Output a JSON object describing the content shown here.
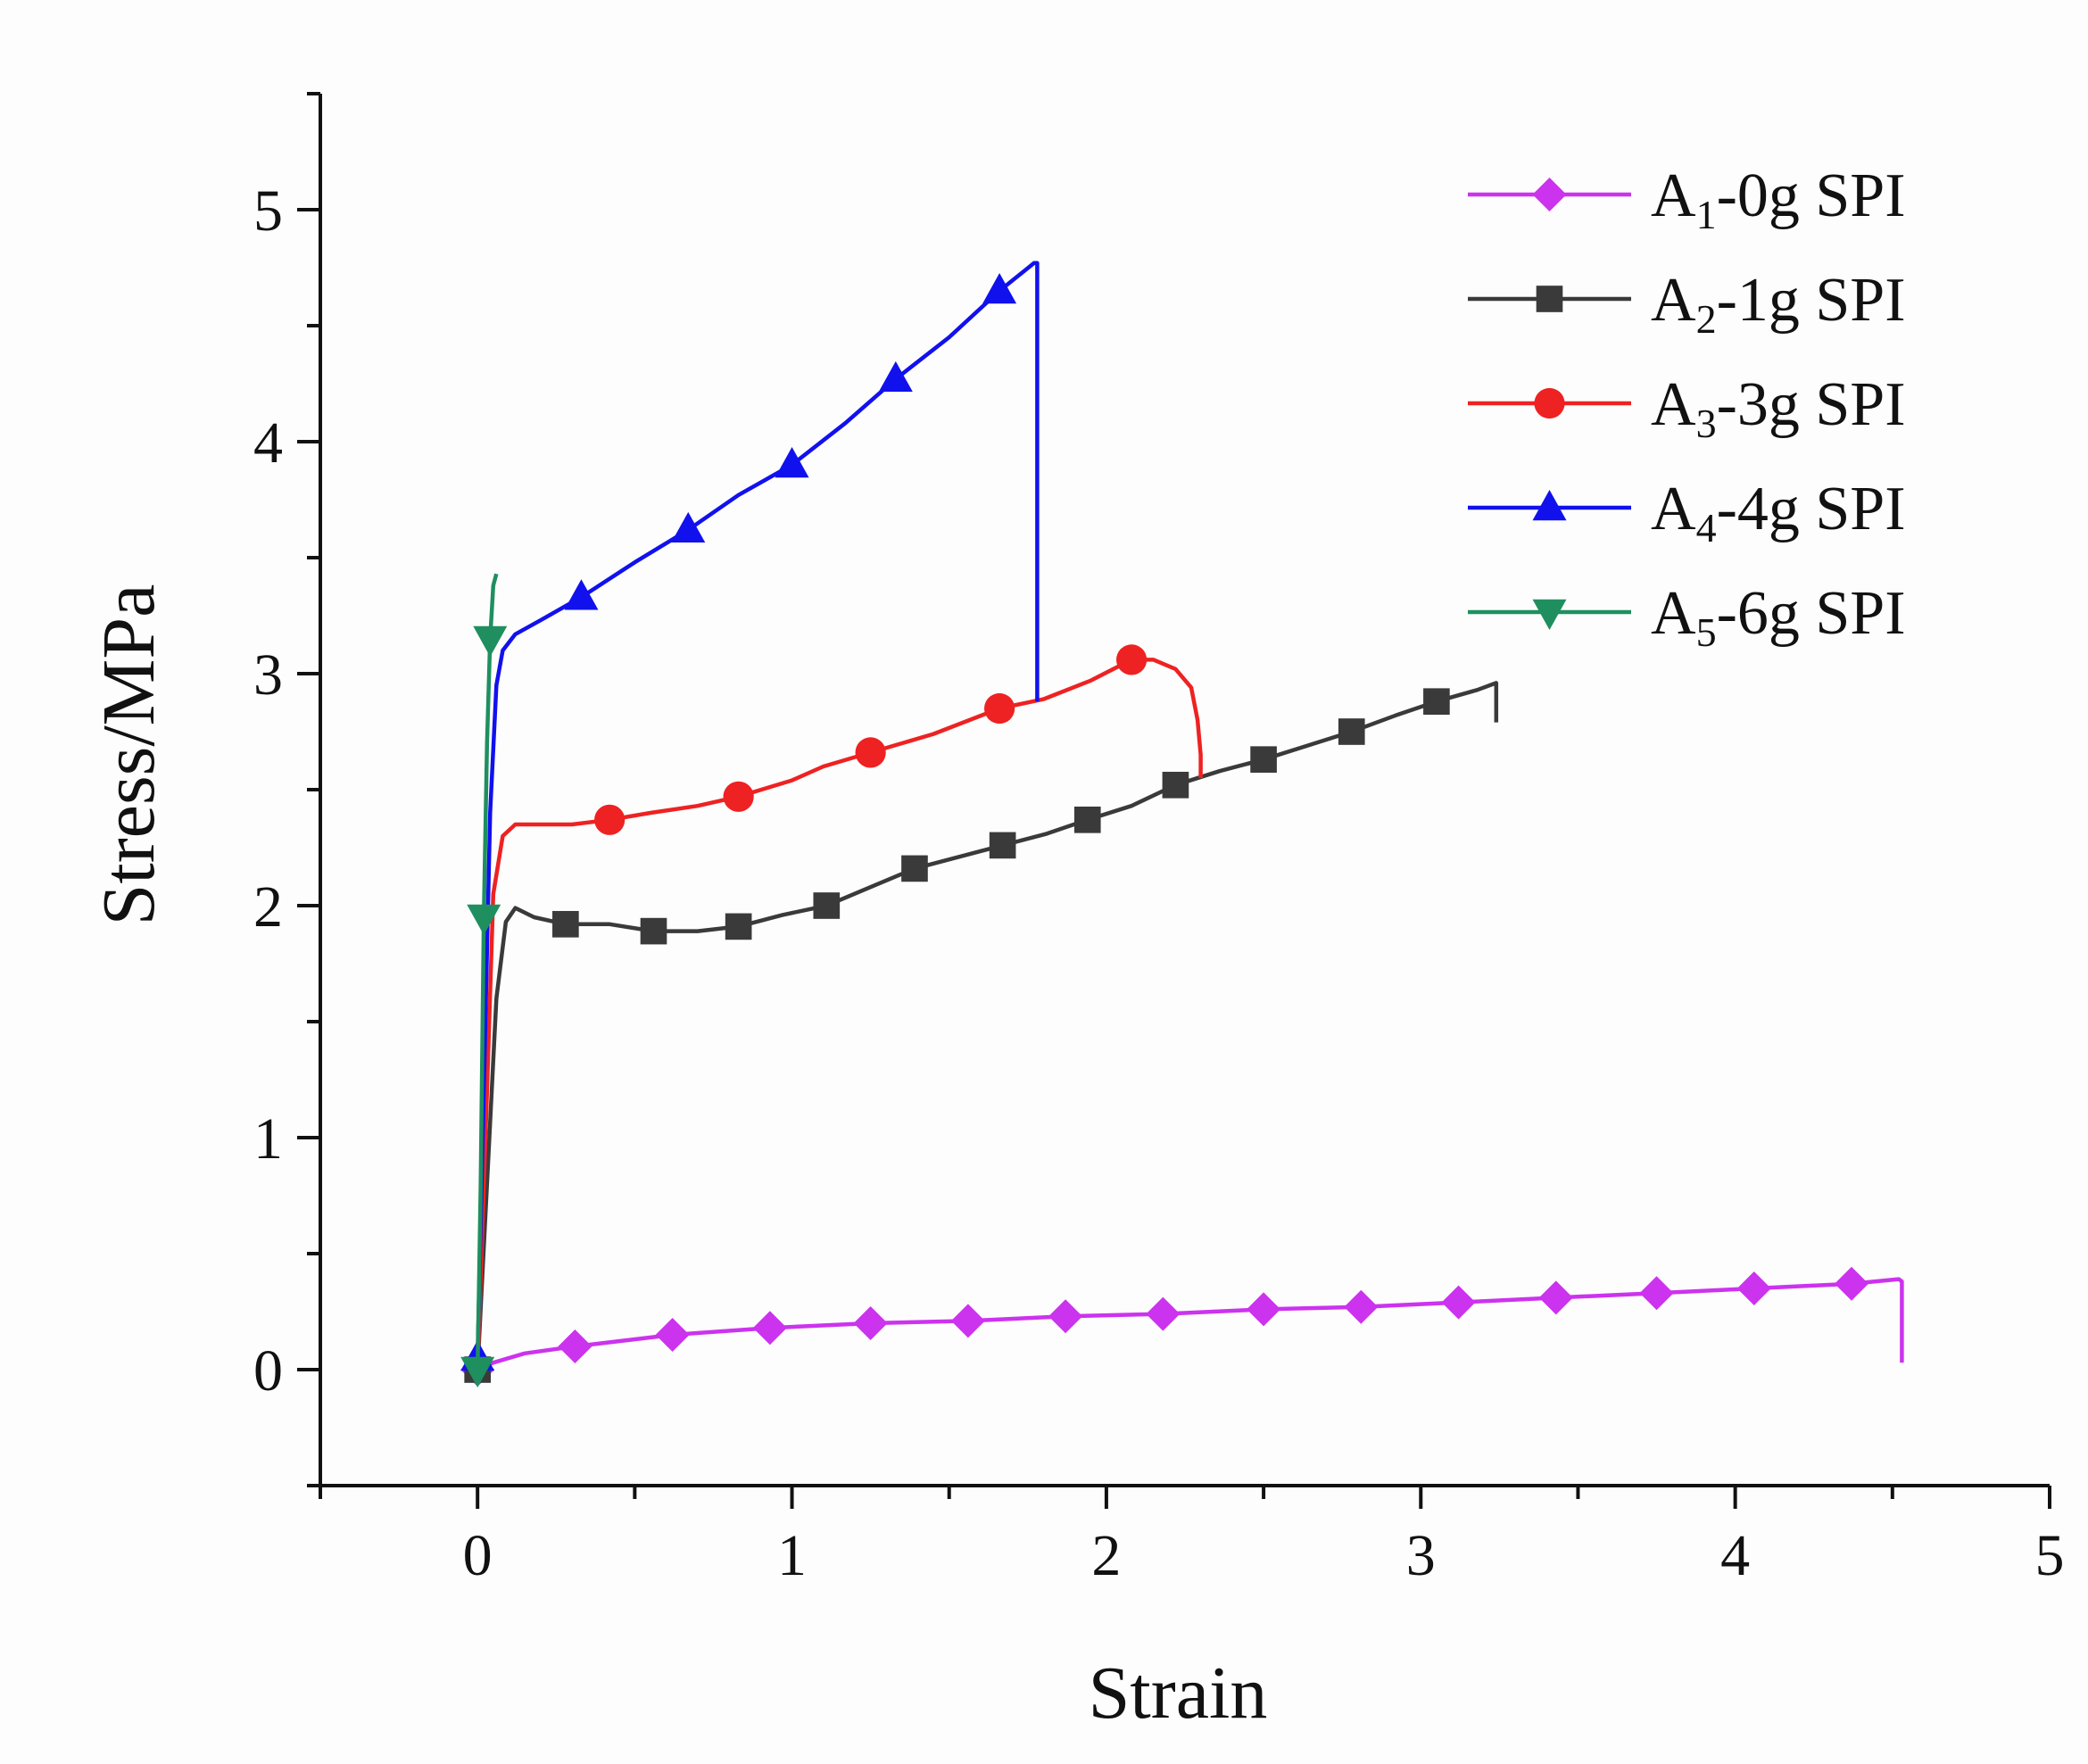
{
  "chart_data": {
    "type": "line",
    "title": "",
    "xlabel": "Strain",
    "ylabel": "Stress/MPa",
    "xlim": [
      -0.5,
      5
    ],
    "ylim": [
      -0.5,
      5.5
    ],
    "xticks": [
      "0",
      "1",
      "2",
      "3",
      "4",
      "5"
    ],
    "yticks": [
      "0",
      "1",
      "2",
      "3",
      "4",
      "5"
    ],
    "legend_position": "top-right",
    "series": [
      {
        "name": "A1-0g SPI",
        "label_main": "A",
        "label_sub": "1",
        "label_rest": "-0g SPI",
        "color": "#cc33ee",
        "marker": "diamond",
        "x": [
          0,
          0.05,
          0.15,
          0.31,
          0.62,
          0.93,
          1.25,
          1.56,
          1.87,
          2.18,
          2.5,
          2.81,
          3.12,
          3.43,
          3.75,
          4.06,
          4.37,
          4.52,
          4.53,
          4.53
        ],
        "y": [
          0,
          0.03,
          0.07,
          0.1,
          0.15,
          0.18,
          0.2,
          0.21,
          0.23,
          0.24,
          0.26,
          0.27,
          0.29,
          0.31,
          0.33,
          0.35,
          0.37,
          0.39,
          0.38,
          0.03
        ],
        "markers_x": [
          0,
          0.31,
          0.62,
          0.93,
          1.25,
          1.56,
          1.87,
          2.18,
          2.5,
          2.81,
          3.12,
          3.43,
          3.75,
          4.06,
          4.37
        ],
        "markers_y": [
          0,
          0.1,
          0.15,
          0.18,
          0.2,
          0.21,
          0.23,
          0.24,
          0.26,
          0.27,
          0.29,
          0.31,
          0.33,
          0.35,
          0.37
        ]
      },
      {
        "name": "A2-1g SPI",
        "label_main": "A",
        "label_sub": "2",
        "label_rest": "-1g SPI",
        "color": "#3a3a3a",
        "marker": "square",
        "x": [
          0,
          0.03,
          0.06,
          0.09,
          0.12,
          0.18,
          0.28,
          0.42,
          0.56,
          0.7,
          0.83,
          0.97,
          1.11,
          1.25,
          1.39,
          1.53,
          1.67,
          1.81,
          1.94,
          2.08,
          2.22,
          2.36,
          2.5,
          2.64,
          2.78,
          2.92,
          3.05,
          3.18,
          3.24,
          3.24,
          3.24
        ],
        "y": [
          0,
          0.8,
          1.6,
          1.93,
          1.99,
          1.95,
          1.92,
          1.92,
          1.89,
          1.89,
          1.91,
          1.96,
          2.0,
          2.08,
          2.16,
          2.21,
          2.26,
          2.31,
          2.37,
          2.43,
          2.52,
          2.58,
          2.63,
          2.69,
          2.75,
          2.82,
          2.88,
          2.93,
          2.96,
          2.88,
          2.79
        ],
        "markers_x": [
          0,
          0.28,
          0.56,
          0.83,
          1.11,
          1.39,
          1.67,
          1.94,
          2.22,
          2.5,
          2.78,
          3.05
        ],
        "markers_y": [
          0,
          1.92,
          1.89,
          1.91,
          2.0,
          2.16,
          2.26,
          2.37,
          2.52,
          2.63,
          2.75,
          2.88
        ]
      },
      {
        "name": "A3-3g SPI",
        "label_main": "A",
        "label_sub": "3",
        "label_rest": "-3g SPI",
        "color": "#ee2222",
        "marker": "circle",
        "x": [
          0,
          0.03,
          0.05,
          0.08,
          0.12,
          0.2,
          0.3,
          0.42,
          0.55,
          0.7,
          0.83,
          1.0,
          1.1,
          1.25,
          1.45,
          1.66,
          1.8,
          1.95,
          2.08,
          2.15,
          2.22,
          2.27,
          2.29,
          2.3,
          2.3
        ],
        "y": [
          0,
          1.2,
          2.05,
          2.3,
          2.35,
          2.35,
          2.35,
          2.37,
          2.4,
          2.43,
          2.47,
          2.54,
          2.6,
          2.66,
          2.74,
          2.85,
          2.89,
          2.97,
          3.06,
          3.06,
          3.02,
          2.94,
          2.8,
          2.65,
          2.55
        ],
        "markers_x": [
          0.42,
          0.83,
          1.25,
          1.66,
          2.08
        ],
        "markers_y": [
          2.37,
          2.47,
          2.66,
          2.85,
          3.06
        ]
      },
      {
        "name": "A4-4g SPI",
        "label_main": "A",
        "label_sub": "4",
        "label_rest": "-4g SPI",
        "color": "#1111ee",
        "marker": "triangle-up",
        "x": [
          0,
          0.02,
          0.04,
          0.06,
          0.08,
          0.12,
          0.2,
          0.33,
          0.5,
          0.67,
          0.83,
          1.0,
          1.17,
          1.33,
          1.5,
          1.66,
          1.77,
          1.78,
          1.78,
          1.78
        ],
        "y": [
          0.05,
          1.2,
          2.4,
          2.95,
          3.1,
          3.17,
          3.23,
          3.33,
          3.48,
          3.62,
          3.77,
          3.9,
          4.08,
          4.27,
          4.45,
          4.65,
          4.77,
          4.77,
          3.7,
          2.88
        ],
        "markers_x": [
          0,
          0.33,
          0.67,
          1.0,
          1.33,
          1.66
        ],
        "markers_y": [
          0.05,
          3.33,
          3.62,
          3.9,
          4.27,
          4.65
        ]
      },
      {
        "name": "A5-6g SPI",
        "label_main": "A",
        "label_sub": "5",
        "label_rest": "-6g SPI",
        "color": "#1f8f5f",
        "marker": "triangle-down",
        "x": [
          0,
          0.01,
          0.02,
          0.03,
          0.04,
          0.05,
          0.06
        ],
        "y": [
          0,
          0.8,
          1.95,
          2.7,
          3.15,
          3.38,
          3.43
        ],
        "markers_x": [
          0,
          0.02,
          0.04
        ],
        "markers_y": [
          0,
          1.95,
          3.15
        ]
      }
    ]
  }
}
